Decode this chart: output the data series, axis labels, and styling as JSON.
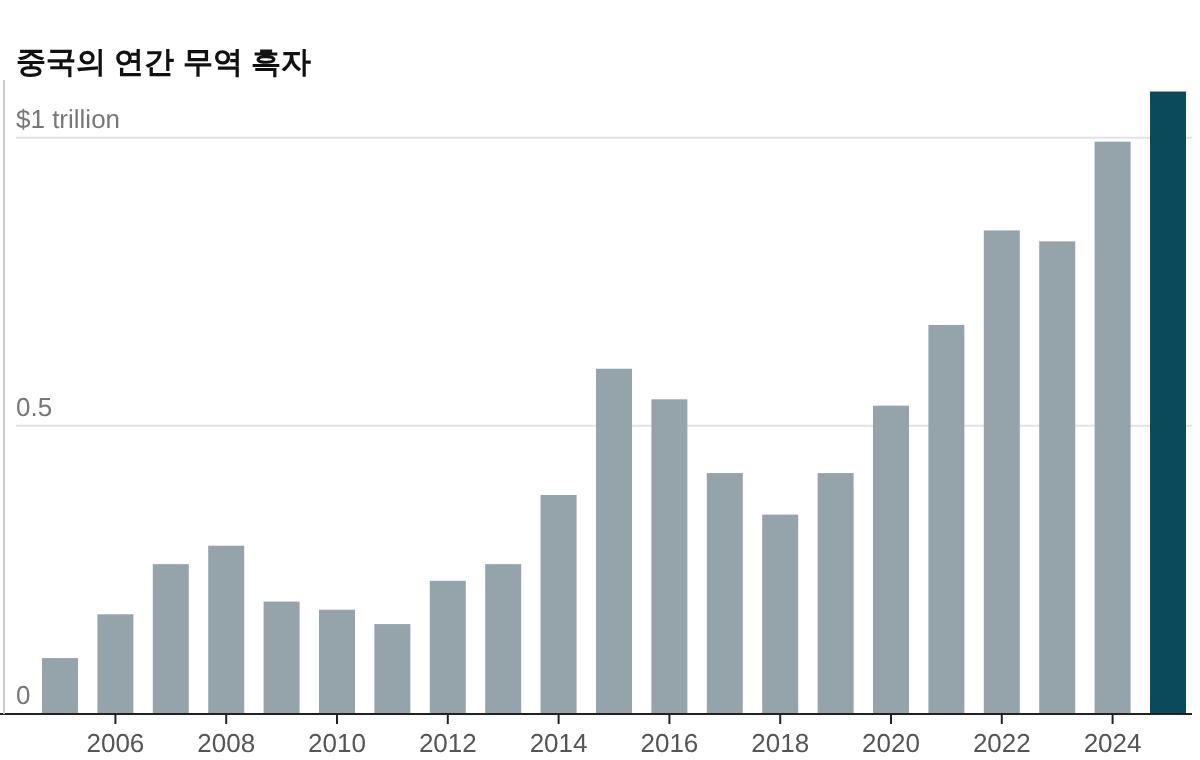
{
  "chart_data": {
    "type": "bar",
    "title": "중국의 연간 무역 흑자",
    "categories": [
      null,
      "2006",
      null,
      "2008",
      null,
      "2010",
      null,
      "2012",
      null,
      "2014",
      null,
      "2016",
      null,
      "2018",
      null,
      "2020",
      null,
      "2022",
      null,
      "2024",
      null
    ],
    "values": [
      0.097,
      0.173,
      0.26,
      0.292,
      0.195,
      0.181,
      0.156,
      0.231,
      0.26,
      0.38,
      0.599,
      0.546,
      0.418,
      0.346,
      0.418,
      0.535,
      0.675,
      0.839,
      0.82,
      0.993,
      1.08
    ],
    "colors": [
      "#95a3ab",
      "#95a3ab",
      "#95a3ab",
      "#95a3ab",
      "#95a3ab",
      "#95a3ab",
      "#95a3ab",
      "#95a3ab",
      "#95a3ab",
      "#95a3ab",
      "#95a3ab",
      "#95a3ab",
      "#95a3ab",
      "#95a3ab",
      "#95a3ab",
      "#95a3ab",
      "#95a3ab",
      "#95a3ab",
      "#95a3ab",
      "#95a3ab",
      "#0b4a5a"
    ],
    "ylim": [
      0,
      1.1
    ],
    "yticks": [
      0,
      0.5,
      {
        "value": 1,
        "label": "$1 trillion"
      }
    ],
    "grid": "y"
  }
}
